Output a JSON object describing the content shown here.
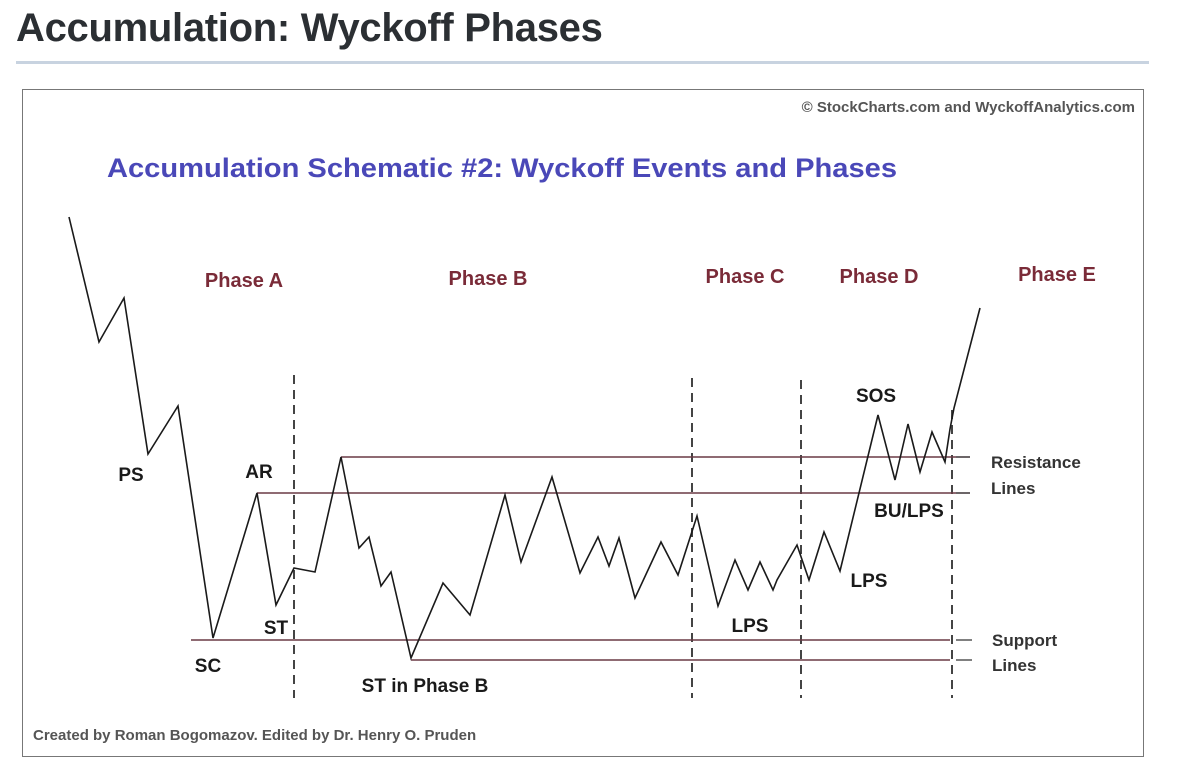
{
  "page": {
    "title": "Accumulation: Wyckoff Phases"
  },
  "figure": {
    "copyright": "© StockCharts.com and WyckoffAnalytics.com",
    "schematic_title": "Accumulation Schematic #2: Wyckoff Events and Phases",
    "credit": "Created by Roman Bogomazov. Edited by Dr. Henry O. Pruden",
    "phases": {
      "a": "Phase A",
      "b": "Phase B",
      "c": "Phase C",
      "d": "Phase D",
      "e": "Phase E"
    },
    "events": {
      "ps": "PS",
      "sc": "SC",
      "ar": "AR",
      "st": "ST",
      "st_b": "ST in Phase B",
      "lps_c": "LPS",
      "lps_d": "LPS",
      "sos": "SOS",
      "bu_lps": "BU/LPS"
    },
    "line_labels": {
      "resistance_1": "Resistance",
      "resistance_2": "Lines",
      "support_1": "Support",
      "support_2": "Lines"
    },
    "colors": {
      "title_blue": "#4a48b8",
      "phase_maroon": "#7a2b38",
      "price_line": "#1a1a1a",
      "level_line": "#6a3a45",
      "credit_gray": "#555555"
    }
  }
}
